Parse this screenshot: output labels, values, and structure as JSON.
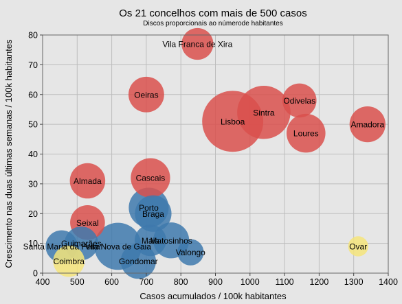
{
  "chart_data": {
    "type": "scatter",
    "title": "Os 21 concelhos com mais de 500 casos",
    "subtitle": "Discos proporcionais ao númerode habitantes",
    "xlabel": "Casos acumulados / 100k habitantes",
    "ylabel": "Crescimento nas duas últimas semanas / 100k habitantes",
    "xlim": [
      400,
      1400
    ],
    "ylim": [
      0,
      80
    ],
    "xticks": [
      "400",
      "500",
      "600",
      "700",
      "800",
      "900",
      "1000",
      "1100",
      "1200",
      "1300",
      "1400"
    ],
    "yticks": [
      "0",
      "10",
      "20",
      "30",
      "40",
      "50",
      "60",
      "70",
      "80"
    ],
    "grid": true,
    "colors": {
      "red": "#d9504c",
      "blue": "#3e79ad",
      "yellow": "#f4e47a",
      "background": "#e6e6e6",
      "plot_background": "#e6e6e6",
      "grid": "#bdbdbd"
    },
    "points": [
      {
        "label": "Vila Franca de Xira",
        "x": 848,
        "y": 77,
        "size": 137000,
        "color": "red"
      },
      {
        "label": "Oeiras",
        "x": 700,
        "y": 60,
        "size": 172000,
        "color": "red"
      },
      {
        "label": "Odivelas",
        "x": 1143,
        "y": 58,
        "size": 158000,
        "color": "red"
      },
      {
        "label": "Sintra",
        "x": 1040,
        "y": 54,
        "size": 385000,
        "color": "red"
      },
      {
        "label": "Lisboa",
        "x": 950,
        "y": 51,
        "size": 506000,
        "color": "red"
      },
      {
        "label": "Amadora",
        "x": 1340,
        "y": 50,
        "size": 175000,
        "color": "red"
      },
      {
        "label": "Loures",
        "x": 1162,
        "y": 47,
        "size": 205000,
        "color": "red"
      },
      {
        "label": "Cascais",
        "x": 712,
        "y": 32,
        "size": 210000,
        "color": "red"
      },
      {
        "label": "Almada",
        "x": 530,
        "y": 31,
        "size": 170000,
        "color": "red"
      },
      {
        "label": "Seixal",
        "x": 530,
        "y": 17,
        "size": 164000,
        "color": "red"
      },
      {
        "label": "Porto",
        "x": 707,
        "y": 22,
        "size": 216000,
        "color": "blue"
      },
      {
        "label": "Braga",
        "x": 720,
        "y": 20,
        "size": 181000,
        "color": "blue"
      },
      {
        "label": "Matosinhos",
        "x": 772,
        "y": 11,
        "size": 175000,
        "color": "blue"
      },
      {
        "label": "Maia",
        "x": 712,
        "y": 11,
        "size": 135000,
        "color": "blue"
      },
      {
        "label": "Vila Nova de Gaia",
        "x": 618,
        "y": 9,
        "size": 302000,
        "color": "blue"
      },
      {
        "label": "Guimarães",
        "x": 512,
        "y": 10,
        "size": 153000,
        "color": "blue"
      },
      {
        "label": "Santa Maria da Feira",
        "x": 455,
        "y": 9,
        "size": 139000,
        "color": "blue"
      },
      {
        "label": "Valongo",
        "x": 828,
        "y": 7,
        "size": 94000,
        "color": "blue"
      },
      {
        "label": "Gondomar",
        "x": 677,
        "y": 4,
        "size": 168000,
        "color": "blue"
      },
      {
        "label": "Coimbra",
        "x": 476,
        "y": 4,
        "size": 134000,
        "color": "yellow"
      },
      {
        "label": "Ovar",
        "x": 1313,
        "y": 9,
        "size": 55000,
        "color": "yellow"
      }
    ]
  }
}
